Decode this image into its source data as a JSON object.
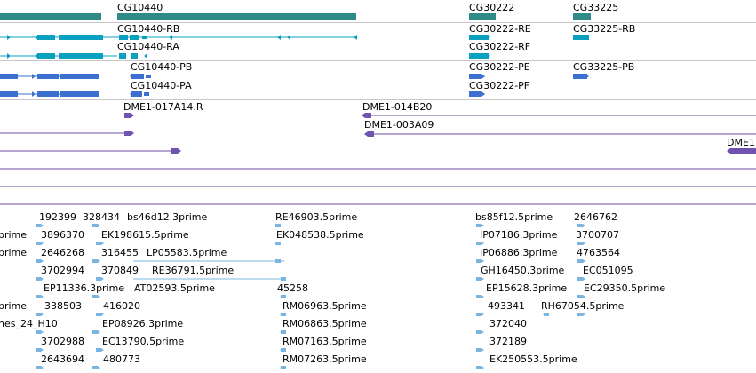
{
  "colors": {
    "gene": "#2e8b87",
    "transcript_cyan": "#0aa0c0",
    "transcript_blue": "#3b6fd0",
    "clone": "#7052b0",
    "est": "#7ab4e0",
    "separator": "#c8c8c8",
    "alignment_line": "#6a4e9c"
  },
  "gene_track": {
    "items": [
      {
        "label": "CG10440"
      },
      {
        "label": "CG30222"
      },
      {
        "label": "CG33225"
      }
    ]
  },
  "transcript_track_1": {
    "labels": [
      "CG10440-RB",
      "CG10440-RA",
      "CG30222-RE",
      "CG30222-RF",
      "CG33225-RB"
    ]
  },
  "transcript_track_2": {
    "labels": [
      "CG10440-PB",
      "CG10440-PA",
      "CG30222-PE",
      "CG30222-PF",
      "CG33225-PB"
    ]
  },
  "clone_track": {
    "labels": [
      "DME1-017A14.R",
      "DME1-014B20",
      "DME1-003A09",
      "DME1"
    ]
  },
  "est_track": {
    "labels": [
      "192399",
      "328434",
      "bs46d12.3prime",
      "RE46903.5prime",
      "bs85f12.5prime",
      "2646762",
      "prime",
      "3896370",
      "EK198615.5prime",
      "EK048538.5prime",
      "IP07186.3prime",
      "3700707",
      "prime",
      "2646268",
      "316455",
      "LP05583.5prime",
      "IP06886.3prime",
      "4763564",
      "3702994",
      "370849",
      "RE36791.5prime",
      "GH16450.3prime",
      "EC051095",
      "EP11336.3prime",
      "AT02593.5prime",
      "45258",
      "EP15628.3prime",
      "EC29350.5prime",
      "prime",
      "338503",
      "416020",
      "RM06963.5prime",
      "493341",
      "RH67054.5prime",
      "nes_24_H10",
      "EP08926.3prime",
      "RM06863.5prime",
      "372040",
      "3702988",
      "EC13790.5prime",
      "RM07163.5prime",
      "372189",
      "2643694",
      "480773",
      "RM07263.5prime",
      "EK250553.5prime"
    ]
  }
}
